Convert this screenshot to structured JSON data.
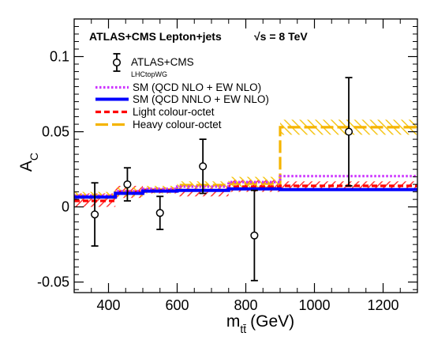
{
  "chart_data": {
    "type": "step-histogram",
    "header": {
      "title": "ATLAS+CMS Lepton+jets",
      "energy": "√s = 8 TeV"
    },
    "xlabel": "m",
    "xlabel_sub": "tt̄",
    "xlabel_unit": "(GeV)",
    "ylabel": "A",
    "ylabel_sub": "C",
    "xlim": [
      300,
      1300
    ],
    "ylim": [
      -0.057,
      0.125
    ],
    "x_ticks": [
      400,
      600,
      800,
      1000,
      1200
    ],
    "x_tick_labels": [
      "400",
      "600",
      "800",
      "1000",
      "1200"
    ],
    "y_ticks": [
      -0.05,
      0,
      0.05,
      0.1
    ],
    "y_tick_labels": [
      "-0.05",
      "0",
      "0.05",
      "0.1"
    ],
    "bin_edges": [
      300,
      420,
      500,
      600,
      750,
      900,
      1300
    ],
    "data": {
      "name": "ATLAS+CMS",
      "subname": "LHCtopWG",
      "points": [
        {
          "x": 360,
          "y": -0.005,
          "err": 0.021
        },
        {
          "x": 455,
          "y": 0.015,
          "err": 0.011
        },
        {
          "x": 550,
          "y": -0.004,
          "err": 0.011
        },
        {
          "x": 675,
          "y": 0.027,
          "err": 0.018
        },
        {
          "x": 825,
          "y": -0.019,
          "err": 0.03
        },
        {
          "x": 1100,
          "y": 0.05,
          "err": 0.036
        }
      ]
    },
    "series": [
      {
        "name": "SM (QCD NLO + EW NLO)",
        "color": "#cc33ff",
        "style": "dotted",
        "values": [
          0.0075,
          0.0105,
          0.012,
          0.0135,
          0.0165,
          0.0205
        ]
      },
      {
        "name": "SM (QCD NNLO + EW NLO)",
        "color": "#0000ff",
        "style": "solid",
        "values": [
          0.0065,
          0.009,
          0.0105,
          0.011,
          0.012,
          0.0115
        ]
      },
      {
        "name": "Light colour-octet",
        "color": "#ff0000",
        "style": "dashed",
        "values": [
          0.004,
          0.01,
          0.011,
          0.011,
          0.0135,
          0.014
        ],
        "band": [
          [
            0.0,
            0.009
          ],
          [
            0.006,
            0.014
          ],
          [
            0.009,
            0.013
          ],
          [
            0.007,
            0.015
          ],
          [
            0.01,
            0.018
          ],
          [
            0.011,
            0.017
          ]
        ]
      },
      {
        "name": "Heavy colour-octet",
        "color": "#f5b400",
        "style": "longdash",
        "values": [
          0.0075,
          0.01,
          0.0115,
          0.0145,
          0.0155,
          0.053
        ],
        "band": [
          [
            0.005,
            0.01
          ],
          [
            0.007,
            0.013
          ],
          [
            0.009,
            0.014
          ],
          [
            0.012,
            0.017
          ],
          [
            0.013,
            0.02
          ],
          [
            0.048,
            0.058
          ]
        ]
      }
    ],
    "grid": false,
    "legend_position": "top-left"
  }
}
